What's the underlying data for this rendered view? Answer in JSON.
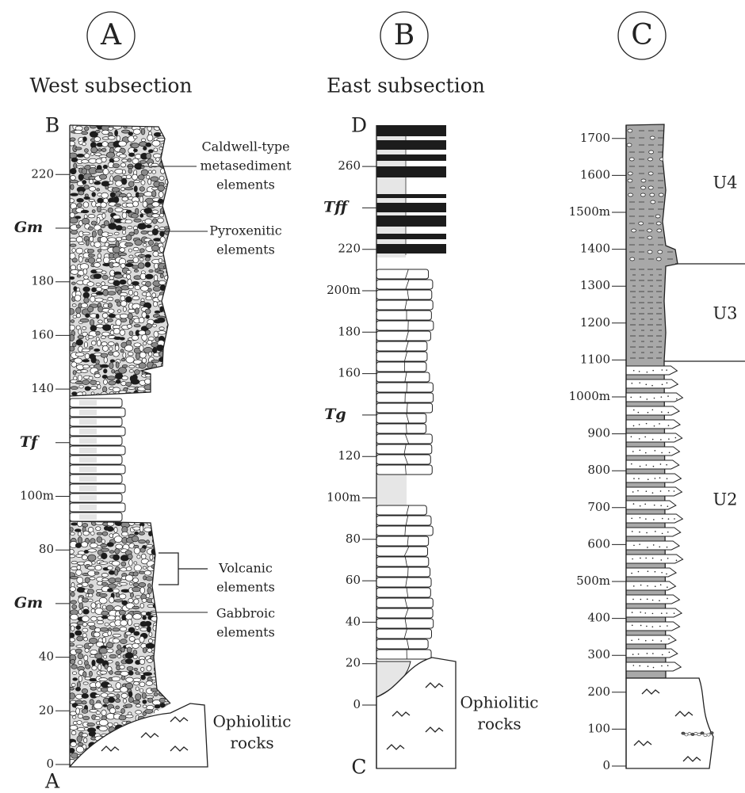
{
  "columns": [
    {
      "letter": "A",
      "title": "West subsection",
      "top_label": "B",
      "bottom_label": "A",
      "ticks": [
        "0",
        "20",
        "40",
        null,
        "80",
        "100m",
        null,
        "140",
        "160",
        "180",
        null,
        "220"
      ],
      "facies": [
        "Gm",
        "Tf",
        "Gm"
      ],
      "annotations": [
        [
          "Caldwell-type",
          "metasediment",
          "elements"
        ],
        [
          "Pyroxenitic",
          "elements"
        ],
        [
          "Volcanic",
          "elements"
        ],
        [
          "Gabbroic",
          "elements"
        ]
      ],
      "basement": [
        "Ophiolitic",
        "rocks"
      ]
    },
    {
      "letter": "B",
      "title": "East subsection",
      "top_label": "D",
      "bottom_label": "C",
      "ticks": [
        "0",
        "20",
        "40",
        "60",
        "80",
        "100m",
        "120",
        null,
        "160",
        "180",
        "200m",
        "220",
        null,
        "260"
      ],
      "facies": [
        "Tg",
        "Tff"
      ],
      "basement": [
        "Ophiolitic",
        "rocks"
      ]
    },
    {
      "letter": "C",
      "ticks": [
        "0",
        "100",
        "200",
        "300",
        "400",
        "500m",
        "600",
        "700",
        "800",
        "900",
        "1000m",
        "1100",
        "1200",
        "1300",
        "1400",
        "1500m",
        "1600",
        "1700"
      ],
      "units": [
        "U2",
        "U3",
        "U4"
      ]
    }
  ]
}
